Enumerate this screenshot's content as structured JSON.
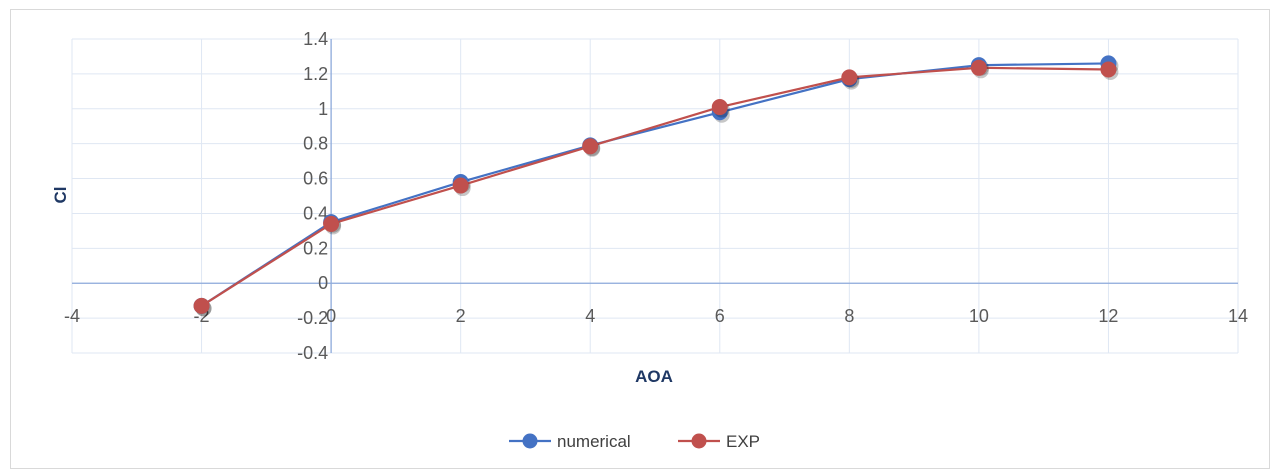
{
  "chart_data": {
    "type": "line",
    "title": "",
    "xlabel": "AOA",
    "ylabel": "Cl",
    "xlim": [
      -4,
      14
    ],
    "ylim": [
      -0.4,
      1.4
    ],
    "xticks": [
      "-4",
      "-2",
      "0",
      "2",
      "4",
      "6",
      "8",
      "10",
      "12",
      "14"
    ],
    "yticks": [
      "1.4",
      "1.2",
      "1",
      "0.8",
      "0.6",
      "0.4",
      "0.2",
      "0",
      "-0.2",
      "-0.4"
    ],
    "grid": true,
    "legend_position": "bottom",
    "series": [
      {
        "name": "numerical",
        "color": "#4472c4",
        "x": [
          -2,
          0,
          2,
          4,
          6,
          8,
          10,
          12
        ],
        "y": [
          -0.13,
          0.35,
          0.58,
          0.79,
          0.98,
          1.17,
          1.25,
          1.26
        ]
      },
      {
        "name": "EXP",
        "color": "#c0504d",
        "x": [
          -2,
          0,
          2,
          4,
          6,
          8,
          10,
          12
        ],
        "y": [
          -0.13,
          0.34,
          0.56,
          0.785,
          1.01,
          1.18,
          1.235,
          1.225
        ]
      }
    ]
  }
}
